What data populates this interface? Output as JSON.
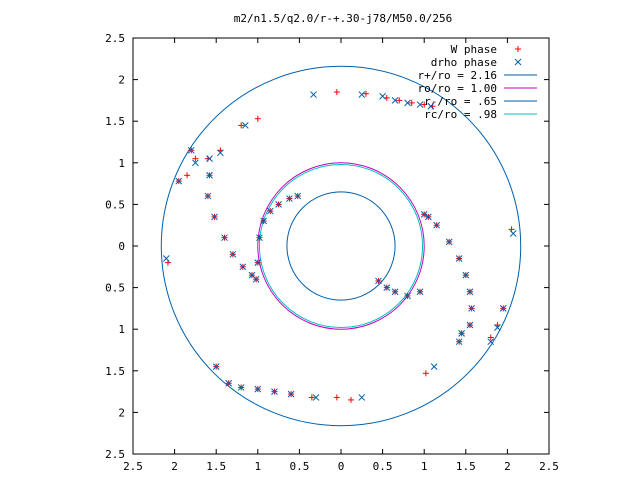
{
  "chart_data": {
    "type": "scatter",
    "title": "m2/n1.5/q2.0/r-+.30-j78/M50.0/256",
    "xlabel": "",
    "ylabel": "",
    "xlim": [
      -2.5,
      2.5
    ],
    "ylim": [
      -2.5,
      2.5
    ],
    "x_tick_values": [
      -2.5,
      -2,
      -1.5,
      -1,
      -0.5,
      0,
      0.5,
      1,
      1.5,
      2,
      2.5
    ],
    "x_tick_labels": [
      "2.5",
      "2",
      "1.5",
      "1",
      "0.5",
      "0",
      "0.5",
      "1",
      "1.5",
      "2",
      "2.5"
    ],
    "y_tick_values": [
      2.5,
      2,
      1.5,
      1,
      0.5,
      0,
      -0.5,
      -1,
      -1.5,
      -2,
      -2.5
    ],
    "y_tick_labels": [
      "2.5",
      "2",
      "1.5",
      "1",
      "0.5",
      "0",
      "0.5",
      "1",
      "1.5",
      "2",
      "2.5"
    ],
    "grid": false,
    "legend_position": "top-right",
    "series": [
      {
        "name": "W phase",
        "marker": "plus",
        "color": "#ff0000",
        "points": [
          [
            -0.05,
            1.85
          ],
          [
            0.3,
            1.83
          ],
          [
            -1.0,
            1.53
          ],
          [
            -1.2,
            1.45
          ],
          [
            -1.45,
            1.15
          ],
          [
            -1.6,
            1.05
          ],
          [
            -1.75,
            1.05
          ],
          [
            -1.8,
            1.15
          ],
          [
            -1.95,
            0.78
          ],
          [
            -1.85,
            0.85
          ],
          [
            -2.08,
            -0.2
          ],
          [
            0.55,
            1.78
          ],
          [
            0.7,
            1.75
          ],
          [
            0.85,
            1.72
          ],
          [
            1.0,
            1.7
          ],
          [
            1.1,
            1.68
          ],
          [
            -1.58,
            0.85
          ],
          [
            -1.6,
            0.6
          ],
          [
            -1.52,
            0.35
          ],
          [
            -1.4,
            0.1
          ],
          [
            -1.3,
            -0.1
          ],
          [
            -1.18,
            -0.25
          ],
          [
            -1.07,
            -0.35
          ],
          [
            -1.02,
            -0.4
          ],
          [
            -1.0,
            -0.2
          ],
          [
            -0.98,
            0.1
          ],
          [
            -0.93,
            0.3
          ],
          [
            -0.85,
            0.42
          ],
          [
            -0.75,
            0.5
          ],
          [
            -0.62,
            0.57
          ],
          [
            -0.52,
            0.6
          ],
          [
            1.0,
            0.38
          ],
          [
            1.05,
            0.35
          ],
          [
            1.15,
            0.25
          ],
          [
            1.3,
            0.05
          ],
          [
            1.42,
            -0.15
          ],
          [
            1.5,
            -0.35
          ],
          [
            1.55,
            -0.55
          ],
          [
            1.57,
            -0.75
          ],
          [
            1.55,
            -0.95
          ],
          [
            1.42,
            -1.15
          ],
          [
            1.8,
            -1.1
          ],
          [
            1.88,
            -0.95
          ],
          [
            1.95,
            -0.75
          ],
          [
            2.05,
            0.2
          ],
          [
            0.95,
            -0.55
          ],
          [
            0.8,
            -0.6
          ],
          [
            0.65,
            -0.55
          ],
          [
            0.55,
            -0.5
          ],
          [
            0.45,
            -0.42
          ],
          [
            -1.5,
            -1.45
          ],
          [
            -1.35,
            -1.65
          ],
          [
            -1.2,
            -1.7
          ],
          [
            -1.0,
            -1.72
          ],
          [
            -0.8,
            -1.75
          ],
          [
            -0.6,
            -1.78
          ],
          [
            -0.35,
            -1.82
          ],
          [
            -0.05,
            -1.82
          ],
          [
            0.12,
            -1.85
          ],
          [
            1.02,
            -1.53
          ],
          [
            1.45,
            -1.05
          ]
        ]
      },
      {
        "name": "drho phase",
        "marker": "x",
        "color": "#0060ad",
        "points": [
          [
            -0.33,
            1.82
          ],
          [
            0.25,
            1.82
          ],
          [
            -1.15,
            1.45
          ],
          [
            -1.45,
            1.12
          ],
          [
            -1.58,
            1.05
          ],
          [
            -1.75,
            1.0
          ],
          [
            -1.8,
            1.15
          ],
          [
            -1.95,
            0.78
          ],
          [
            -2.1,
            -0.15
          ],
          [
            0.5,
            1.8
          ],
          [
            0.65,
            1.75
          ],
          [
            0.8,
            1.72
          ],
          [
            0.95,
            1.7
          ],
          [
            1.08,
            1.68
          ],
          [
            -1.58,
            0.85
          ],
          [
            -1.6,
            0.6
          ],
          [
            -1.52,
            0.35
          ],
          [
            -1.4,
            0.1
          ],
          [
            -1.3,
            -0.1
          ],
          [
            -1.18,
            -0.25
          ],
          [
            -1.07,
            -0.35
          ],
          [
            -1.02,
            -0.4
          ],
          [
            -1.0,
            -0.2
          ],
          [
            -0.98,
            0.1
          ],
          [
            -0.93,
            0.3
          ],
          [
            -0.85,
            0.42
          ],
          [
            -0.75,
            0.5
          ],
          [
            -0.62,
            0.57
          ],
          [
            -0.52,
            0.6
          ],
          [
            1.0,
            0.38
          ],
          [
            1.05,
            0.35
          ],
          [
            1.15,
            0.25
          ],
          [
            1.3,
            0.05
          ],
          [
            1.42,
            -0.15
          ],
          [
            1.5,
            -0.35
          ],
          [
            1.55,
            -0.55
          ],
          [
            1.57,
            -0.75
          ],
          [
            1.55,
            -0.95
          ],
          [
            1.42,
            -1.15
          ],
          [
            1.8,
            -1.15
          ],
          [
            1.88,
            -0.98
          ],
          [
            1.95,
            -0.75
          ],
          [
            2.07,
            0.15
          ],
          [
            0.95,
            -0.55
          ],
          [
            0.8,
            -0.6
          ],
          [
            0.65,
            -0.55
          ],
          [
            0.55,
            -0.5
          ],
          [
            0.45,
            -0.42
          ],
          [
            -1.5,
            -1.45
          ],
          [
            -1.35,
            -1.65
          ],
          [
            -1.2,
            -1.7
          ],
          [
            -1.0,
            -1.72
          ],
          [
            -0.8,
            -1.75
          ],
          [
            -0.6,
            -1.78
          ],
          [
            -0.3,
            -1.82
          ],
          [
            0.25,
            -1.82
          ],
          [
            1.12,
            -1.45
          ],
          [
            1.45,
            -1.05
          ]
        ]
      }
    ],
    "circles": [
      {
        "label": "r+/ro = 2.16",
        "radius": 2.16,
        "color": "#0060ad"
      },
      {
        "label": "ro/ro = 1.00",
        "radius": 1.0,
        "color": "#c000c0"
      },
      {
        "label": "r-/ro = .65",
        "radius": 0.65,
        "color": "#0060ad"
      },
      {
        "label": "rc/ro = .98",
        "radius": 0.98,
        "color": "#00c0c0"
      }
    ]
  }
}
